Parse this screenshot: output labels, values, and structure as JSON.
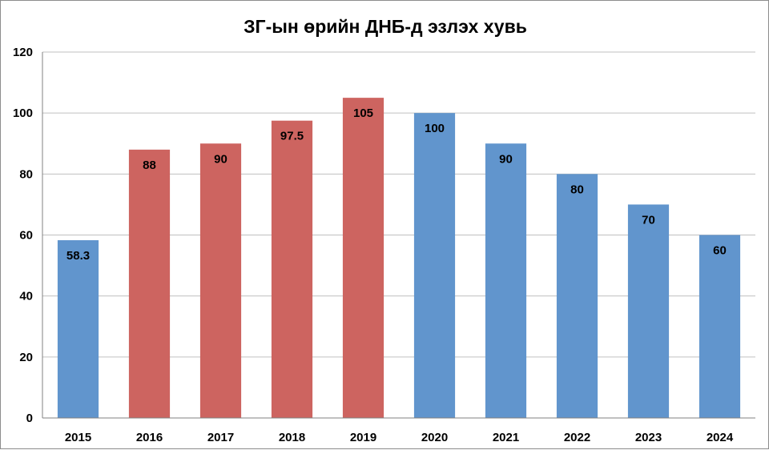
{
  "chart_data": {
    "type": "bar",
    "title": "ЗГ-ын өрийн ДНБ-д эзлэх хувь",
    "xlabel": "",
    "ylabel": "",
    "categories": [
      "2015",
      "2016",
      "2017",
      "2018",
      "2019",
      "2020",
      "2021",
      "2022",
      "2023",
      "2024"
    ],
    "values": [
      58.3,
      88,
      90,
      97.5,
      105,
      100,
      90,
      80,
      70,
      60
    ],
    "data_labels": [
      "58.3",
      "88",
      "90",
      "97.5",
      "105",
      "100",
      "90",
      "80",
      "70",
      "60"
    ],
    "bar_colors": [
      "#6195cd",
      "#cd6460",
      "#cd6460",
      "#cd6460",
      "#cd6460",
      "#6195cd",
      "#6195cd",
      "#6195cd",
      "#6195cd",
      "#6195cd"
    ],
    "ylim": [
      0,
      120
    ],
    "yticks": [
      0,
      20,
      40,
      60,
      80,
      100,
      120
    ],
    "ytick_labels": [
      "0",
      "20",
      "40",
      "60",
      "80",
      "100",
      "120"
    ],
    "grid": true,
    "legend": "none"
  }
}
